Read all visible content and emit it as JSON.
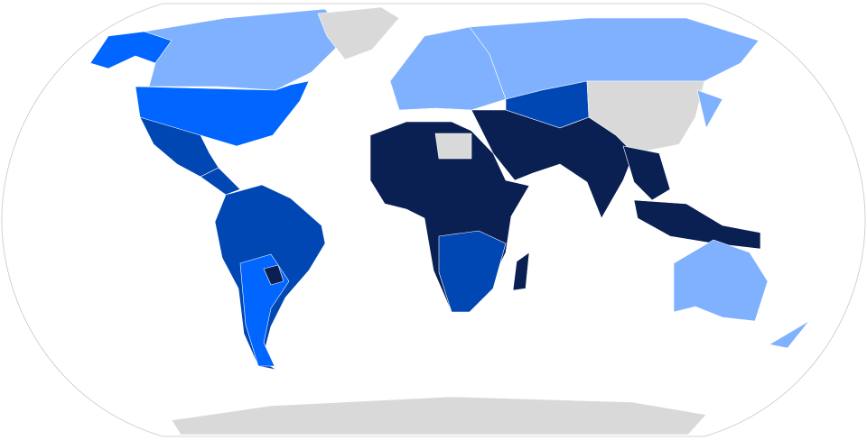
{
  "map": {
    "type": "choropleth",
    "projection": "Robinson",
    "colors": {
      "darkest": "#0a1f52",
      "dark": "#0047b3",
      "medium": "#0066ff",
      "light": "#7fb1ff",
      "no_data": "#d9d9d9",
      "outline": "#c8c8c8"
    },
    "regions": [
      {
        "name": "alaska",
        "category": "medium"
      },
      {
        "name": "canada",
        "category": "light"
      },
      {
        "name": "greenland",
        "category": "no_data"
      },
      {
        "name": "united-states",
        "category": "medium"
      },
      {
        "name": "mexico",
        "category": "dark"
      },
      {
        "name": "central-america",
        "category": "dark"
      },
      {
        "name": "south-america",
        "category": "dark"
      },
      {
        "name": "southern-cone",
        "category": "medium"
      },
      {
        "name": "paraguay",
        "category": "darkest"
      },
      {
        "name": "europe",
        "category": "light"
      },
      {
        "name": "russia",
        "category": "light"
      },
      {
        "name": "central-asia",
        "category": "dark"
      },
      {
        "name": "china-mongolia",
        "category": "no_data"
      },
      {
        "name": "middle-east-south-asia",
        "category": "darkest"
      },
      {
        "name": "africa",
        "category": "darkest"
      },
      {
        "name": "libya",
        "category": "no_data"
      },
      {
        "name": "southern-africa",
        "category": "dark"
      },
      {
        "name": "madagascar",
        "category": "darkest"
      },
      {
        "name": "southeast-asia",
        "category": "darkest"
      },
      {
        "name": "indonesia",
        "category": "darkest"
      },
      {
        "name": "japan",
        "category": "light"
      },
      {
        "name": "australia",
        "category": "light"
      },
      {
        "name": "new-zealand",
        "category": "light"
      },
      {
        "name": "antarctica",
        "category": "no_data"
      }
    ]
  }
}
